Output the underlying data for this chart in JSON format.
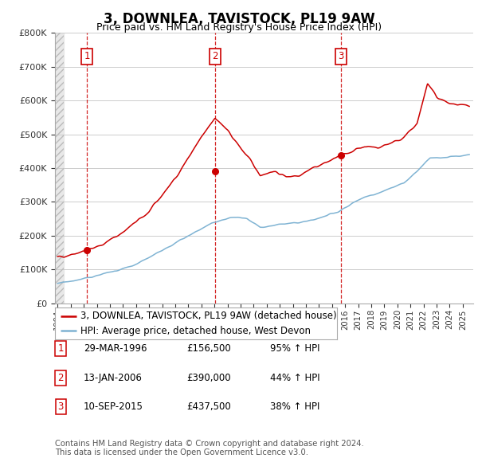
{
  "title": "3, DOWNLEA, TAVISTOCK, PL19 9AW",
  "subtitle": "Price paid vs. HM Land Registry's House Price Index (HPI)",
  "ylim": [
    0,
    800000
  ],
  "yticks": [
    0,
    100000,
    200000,
    300000,
    400000,
    500000,
    600000,
    700000,
    800000
  ],
  "ytick_labels": [
    "£0",
    "£100K",
    "£200K",
    "£300K",
    "£400K",
    "£500K",
    "£600K",
    "£700K",
    "£800K"
  ],
  "xlim_start": 1993.8,
  "xlim_end": 2025.8,
  "red_line_color": "#cc0000",
  "blue_line_color": "#7fb3d3",
  "marker_color": "#cc0000",
  "vline_color": "#cc0000",
  "grid_color": "#cccccc",
  "background_color": "#ffffff",
  "legend_label_red": "3, DOWNLEA, TAVISTOCK, PL19 9AW (detached house)",
  "legend_label_blue": "HPI: Average price, detached house, West Devon",
  "transactions": [
    {
      "date_year": 1996.24,
      "price": 156500,
      "label": "1"
    },
    {
      "date_year": 2006.04,
      "price": 390000,
      "label": "2"
    },
    {
      "date_year": 2015.7,
      "price": 437500,
      "label": "3"
    }
  ],
  "table_rows": [
    {
      "num": "1",
      "date": "29-MAR-1996",
      "price": "£156,500",
      "change": "95% ↑ HPI"
    },
    {
      "num": "2",
      "date": "13-JAN-2006",
      "price": "£390,000",
      "change": "44% ↑ HPI"
    },
    {
      "num": "3",
      "date": "10-SEP-2015",
      "price": "£437,500",
      "change": "38% ↑ HPI"
    }
  ],
  "footnote": "Contains HM Land Registry data © Crown copyright and database right 2024.\nThis data is licensed under the Open Government Licence v3.0.",
  "title_fontsize": 12,
  "subtitle_fontsize": 9,
  "tick_fontsize": 8,
  "legend_fontsize": 8.5,
  "table_fontsize": 8.5
}
